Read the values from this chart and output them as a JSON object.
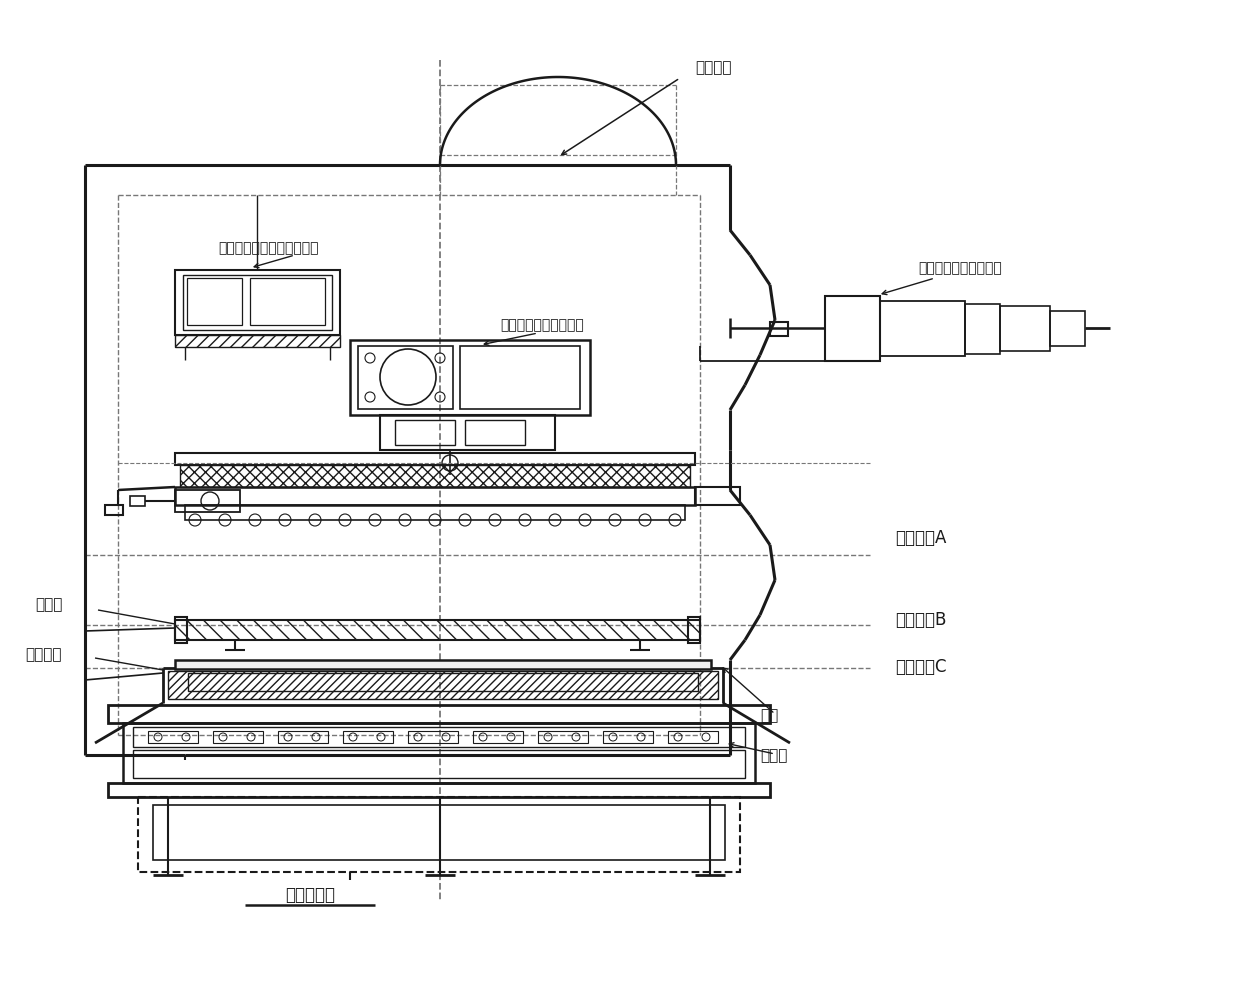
{
  "bg_color": "#ffffff",
  "line_color": "#1a1a1a",
  "dashed_color": "#777777",
  "labels": {
    "wujing_zhongxin": "物镜中心",
    "bianyuan_speed": "边缘保护装置速度控制模块",
    "bianyuan_qidong": "边缘保护装置气动模块",
    "bianyuan_jixie": "边缘保护装置机械模块",
    "chuishi_weizhi": "初始位置A",
    "zhongjian_weizhi": "中间位置B",
    "zhongdian_weizhi": "终点位置C",
    "baohu_huan": "保护环",
    "zhenkong_cao": "真空吁槽",
    "guipian": "硅片",
    "gongjian_tai": "工件台",
    "shangxia_weizhi": "上下片位置"
  },
  "figsize": [
    12.4,
    10.08
  ],
  "dpi": 100
}
